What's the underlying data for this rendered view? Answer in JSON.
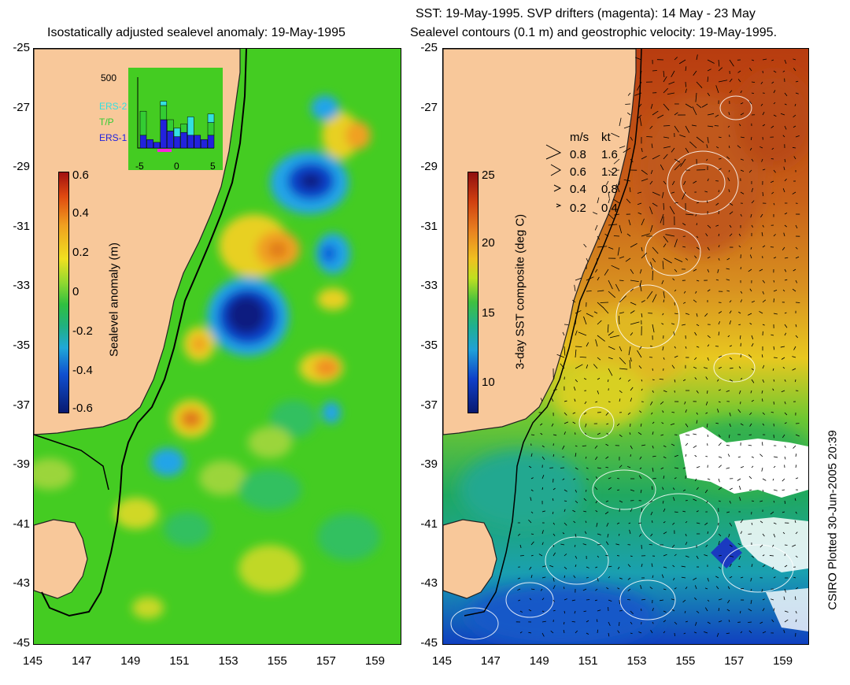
{
  "left_panel": {
    "title": "Isostatically adjusted sealevel anomaly: 19-May-1995",
    "colorbar": {
      "title": "Sealevel anomaly (m)",
      "labels": [
        "0.6",
        "0.4",
        "0.2",
        "0",
        "-0.2",
        "-0.4",
        "-0.6"
      ]
    },
    "histogram": {
      "ymax_label": "500",
      "x_labels": [
        "-5",
        "0",
        "5"
      ],
      "legend": [
        {
          "name": "ERS-2",
          "color": "#33e0e0"
        },
        {
          "name": "T/P",
          "color": "#33cc33"
        },
        {
          "name": "ERS-1",
          "color": "#2222dd"
        }
      ],
      "bars": [
        {
          "x": -5,
          "ers1": 90,
          "tp": 170,
          "ers2": 0
        },
        {
          "x": -4,
          "ers1": 60,
          "tp": 0,
          "ers2": 0
        },
        {
          "x": -3,
          "ers1": 40,
          "tp": 0,
          "ers2": 0
        },
        {
          "x": -2,
          "ers1": 200,
          "tp": 100,
          "ers2": 30
        },
        {
          "x": -1,
          "ers1": 120,
          "tp": 80,
          "ers2": 0
        },
        {
          "x": 0,
          "ers1": 80,
          "tp": 0,
          "ers2": 60
        },
        {
          "x": 1,
          "ers1": 110,
          "tp": 60,
          "ers2": 0
        },
        {
          "x": 2,
          "ers1": 90,
          "tp": 0,
          "ers2": 130
        },
        {
          "x": 3,
          "ers1": 90,
          "tp": 0,
          "ers2": 0
        },
        {
          "x": 4,
          "ers1": 60,
          "tp": 0,
          "ers2": 0
        },
        {
          "x": 5,
          "ers1": 90,
          "tp": 90,
          "ers2": 60
        }
      ]
    }
  },
  "right_panel": {
    "title_line1": "SST: 19-May-1995. SVP drifters (magenta): 14 May - 23 May",
    "title_line2": "Sealevel contours (0.1 m) and geostrophic velocity: 19-May-1995.",
    "colorbar": {
      "title": "3-day SST composite (deg C)",
      "labels": [
        "25",
        "20",
        "15",
        "10"
      ]
    },
    "velocity_key": {
      "headers": [
        "m/s",
        "kt"
      ],
      "rows": [
        {
          "ms": "0.8",
          "kt": "1.6"
        },
        {
          "ms": "0.6",
          "kt": "1.2"
        },
        {
          "ms": "0.4",
          "kt": "0.8"
        },
        {
          "ms": "0.2",
          "kt": "0.4"
        }
      ]
    }
  },
  "axes": {
    "y_labels": [
      "-25",
      "-27",
      "-29",
      "-31",
      "-33",
      "-35",
      "-37",
      "-39",
      "-41",
      "-43",
      "-45"
    ],
    "x_labels": [
      "145",
      "147",
      "149",
      "151",
      "153",
      "155",
      "157",
      "159"
    ]
  },
  "side_note": "CSIRO Plotted 30-Jun-2005 20:39",
  "colors": {
    "land": "#f8c89a",
    "ocean_green": "#44cc22",
    "sst_warm": "#c84a18"
  }
}
